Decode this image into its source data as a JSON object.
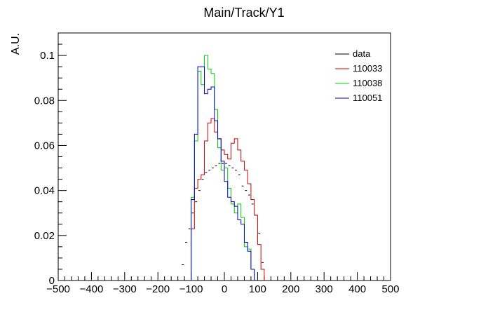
{
  "chart_data": {
    "type": "histogram",
    "title": "Main/Track/Y1",
    "xlabel": "",
    "ylabel": "A.U.",
    "xlim": [
      -500,
      500
    ],
    "ylim": [
      0,
      0.11
    ],
    "bin_width": 10,
    "x_ticks": [
      "−500",
      "−400",
      "−300",
      "−200",
      "−100",
      "0",
      "100",
      "200",
      "300",
      "400",
      "500"
    ],
    "x_tick_values": [
      -500,
      -400,
      -300,
      -200,
      -100,
      0,
      100,
      200,
      300,
      400,
      500
    ],
    "y_ticks": [
      "0",
      "0.02",
      "0.04",
      "0.06",
      "0.08",
      "0.1"
    ],
    "y_tick_values": [
      0,
      0.02,
      0.04,
      0.06,
      0.08,
      0.1
    ],
    "legend_position": "top-right",
    "grid": false,
    "series": [
      {
        "name": "data",
        "color": "#000000",
        "style": "markers",
        "bin_centers": [
          -125,
          -115,
          -105,
          -95,
          -85,
          -75,
          -65,
          -55,
          -45,
          -35,
          -25,
          -15,
          -5,
          5,
          15,
          25,
          35,
          45,
          55,
          65,
          75,
          85,
          95,
          105,
          115
        ],
        "values": [
          0.007,
          0.017,
          0.023,
          0.03,
          0.035,
          0.04,
          0.045,
          0.048,
          0.049,
          0.05,
          0.051,
          0.052,
          0.052,
          0.052,
          0.051,
          0.05,
          0.049,
          0.047,
          0.042,
          0.04,
          0.038,
          0.034,
          0.029,
          0.021,
          0.008
        ]
      },
      {
        "name": "110033",
        "color": "#cc0000",
        "style": "step",
        "x_start": -100,
        "values": [
          0.023,
          0.041,
          0.045,
          0.047,
          0.062,
          0.07,
          0.072,
          0.066,
          0.063,
          0.058,
          0.056,
          0.054,
          0.061,
          0.063,
          0.058,
          0.053,
          0.049,
          0.043,
          0.036,
          0.029,
          0.016,
          0.005
        ]
      },
      {
        "name": "110038",
        "color": "#00cc00",
        "style": "step",
        "x_start": -100,
        "values": [
          0.037,
          0.062,
          0.093,
          0.087,
          0.1,
          0.094,
          0.092,
          0.076,
          0.059,
          0.049,
          0.05,
          0.041,
          0.034,
          0.03,
          0.034,
          0.028,
          0.015,
          0.014,
          0.005
        ]
      },
      {
        "name": "110051",
        "color": "#0000cc",
        "style": "step",
        "x_start": -100,
        "values": [
          0.036,
          0.065,
          0.095,
          0.095,
          0.083,
          0.085,
          0.086,
          0.071,
          0.063,
          0.053,
          0.044,
          0.037,
          0.035,
          0.033,
          0.027,
          0.025,
          0.017,
          0.013,
          0.005
        ]
      }
    ]
  }
}
